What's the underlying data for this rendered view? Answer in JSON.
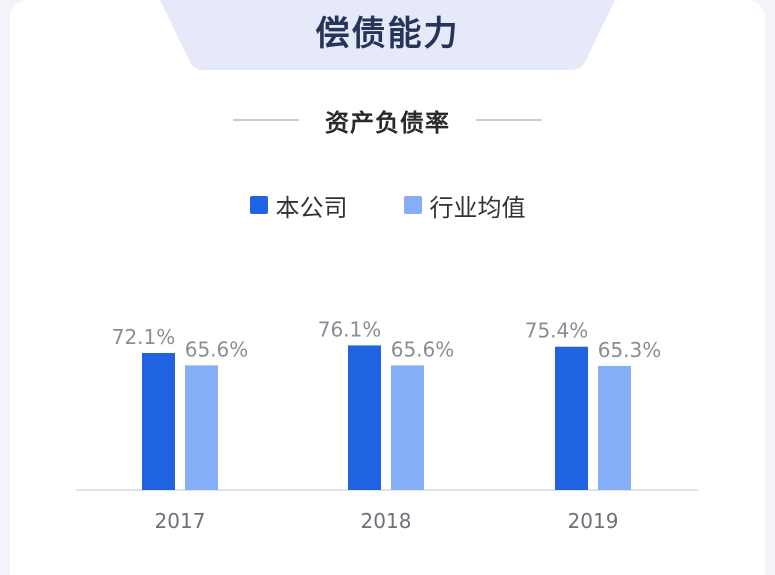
{
  "header": {
    "title": "偿债能力"
  },
  "colors": {
    "company": "#1f63e0",
    "industry": "#86aef7",
    "header_tab": "#e6e9fa"
  },
  "chart_data": {
    "type": "bar",
    "title": "资产负债率",
    "categories": [
      "2017",
      "2018",
      "2019"
    ],
    "series": [
      {
        "name": "本公司",
        "values": [
          72.1,
          76.1,
          75.4
        ],
        "labels": [
          "72.1%",
          "76.1%",
          "75.4%"
        ]
      },
      {
        "name": "行业均值",
        "values": [
          65.6,
          65.6,
          65.3
        ],
        "labels": [
          "65.6%",
          "65.6%",
          "65.3%"
        ]
      }
    ],
    "ylim": [
      0,
      100
    ],
    "grid": false,
    "legend": "top-center"
  }
}
